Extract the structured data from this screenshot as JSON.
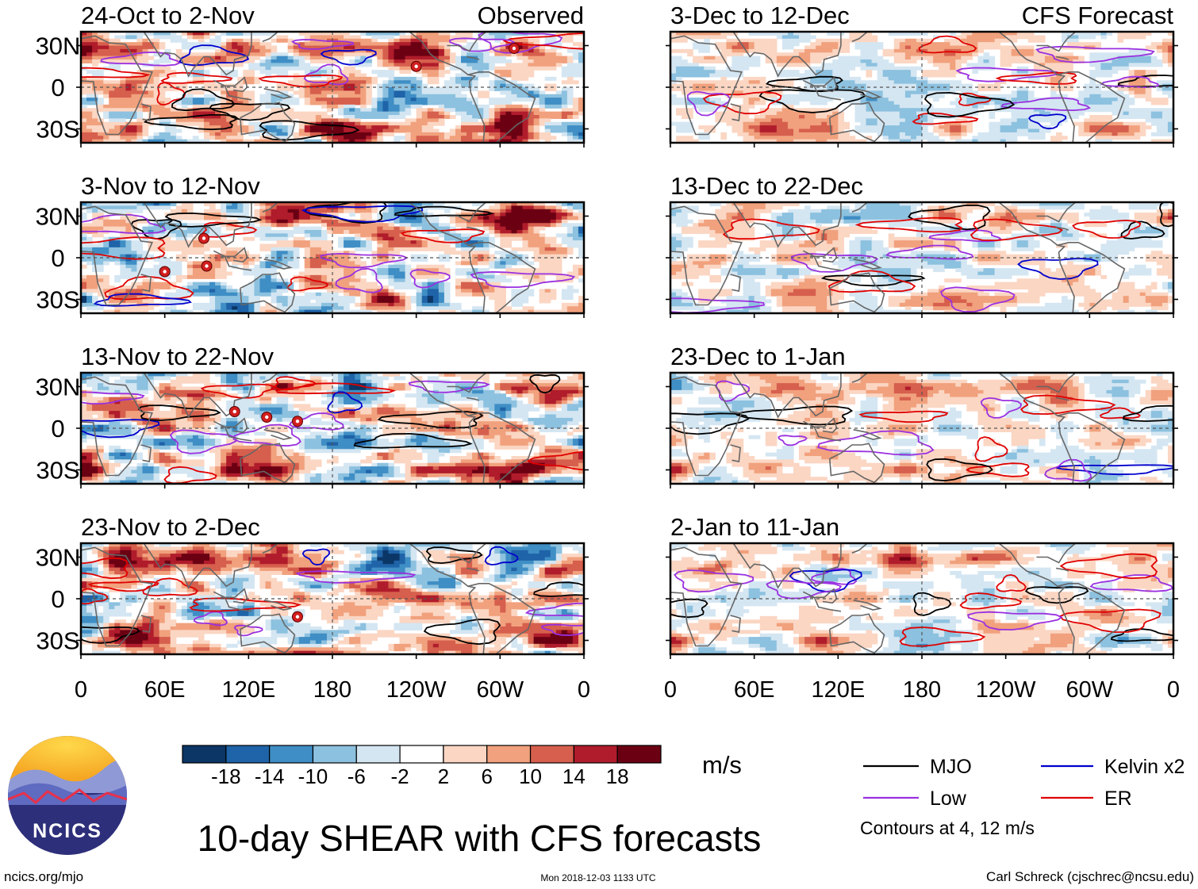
{
  "title": "10-day SHEAR with CFS forecasts",
  "logo": {
    "text": "NCICS"
  },
  "footer": {
    "url": "ncics.org/mjo",
    "timestamp": "Mon 2018-12-03 1133 UTC",
    "credit": "Carl Schreck (cjschrec@ncsu.edu)"
  },
  "colorbar": {
    "unit": "m/s",
    "ticks": [
      "-18",
      "-14",
      "-10",
      "-6",
      "-2",
      "2",
      "6",
      "10",
      "14",
      "18"
    ],
    "colors": [
      "#0b3666",
      "#1f63a8",
      "#3f8ec5",
      "#8cc1df",
      "#d4e6f2",
      "#ffffff",
      "#fbd6c3",
      "#f1a17d",
      "#d65f4d",
      "#b01c2b",
      "#6b0013"
    ]
  },
  "legend": {
    "items": [
      {
        "label": "MJO",
        "color": "#000000"
      },
      {
        "label": "Kelvin x2",
        "color": "#0000cc"
      },
      {
        "label": "Low",
        "color": "#9a30e0"
      },
      {
        "label": "ER",
        "color": "#e00000"
      }
    ],
    "note": "Contours at 4, 12 m/s"
  },
  "chart_data": {
    "type": "heatmap",
    "variable": "10-day vertical wind shear anomaly",
    "unit": "m/s",
    "contours": [
      "MJO",
      "Kelvin x2",
      "Low",
      "ER"
    ],
    "contour_levels": [
      4,
      12
    ],
    "lon_ticks": [
      "0",
      "60E",
      "120E",
      "180",
      "120W",
      "60W",
      "0"
    ],
    "lat_ticks": [
      "30N",
      "0",
      "30S"
    ],
    "lat_range": [
      -40,
      40
    ],
    "lon_range": [
      0,
      360
    ],
    "panels": [
      {
        "id": "obs1",
        "period": "24-Oct to 2-Nov",
        "source": "Observed",
        "tc_markers": [
          {
            "lon": 240,
            "lat": 15
          },
          {
            "lon": 310,
            "lat": 28
          }
        ]
      },
      {
        "id": "obs2",
        "period": "3-Nov to 12-Nov",
        "source": "",
        "tc_markers": [
          {
            "lon": 88,
            "lat": 14
          },
          {
            "lon": 90,
            "lat": -6
          },
          {
            "lon": 60,
            "lat": -10
          }
        ]
      },
      {
        "id": "obs3",
        "period": "13-Nov to 22-Nov",
        "source": "",
        "tc_markers": [
          {
            "lon": 110,
            "lat": 12
          },
          {
            "lon": 133,
            "lat": 8
          },
          {
            "lon": 155,
            "lat": 5
          }
        ]
      },
      {
        "id": "obs4",
        "period": "23-Nov to 2-Dec",
        "source": "",
        "tc_markers": [
          {
            "lon": 155,
            "lat": -13
          }
        ]
      },
      {
        "id": "fc1",
        "period": "3-Dec to 12-Dec",
        "source": "CFS Forecast",
        "tc_markers": []
      },
      {
        "id": "fc2",
        "period": "13-Dec to 22-Dec",
        "source": "",
        "tc_markers": []
      },
      {
        "id": "fc3",
        "period": "23-Dec to 1-Jan",
        "source": "",
        "tc_markers": []
      },
      {
        "id": "fc4",
        "period": "2-Jan to 11-Jan",
        "source": "",
        "tc_markers": []
      }
    ]
  }
}
